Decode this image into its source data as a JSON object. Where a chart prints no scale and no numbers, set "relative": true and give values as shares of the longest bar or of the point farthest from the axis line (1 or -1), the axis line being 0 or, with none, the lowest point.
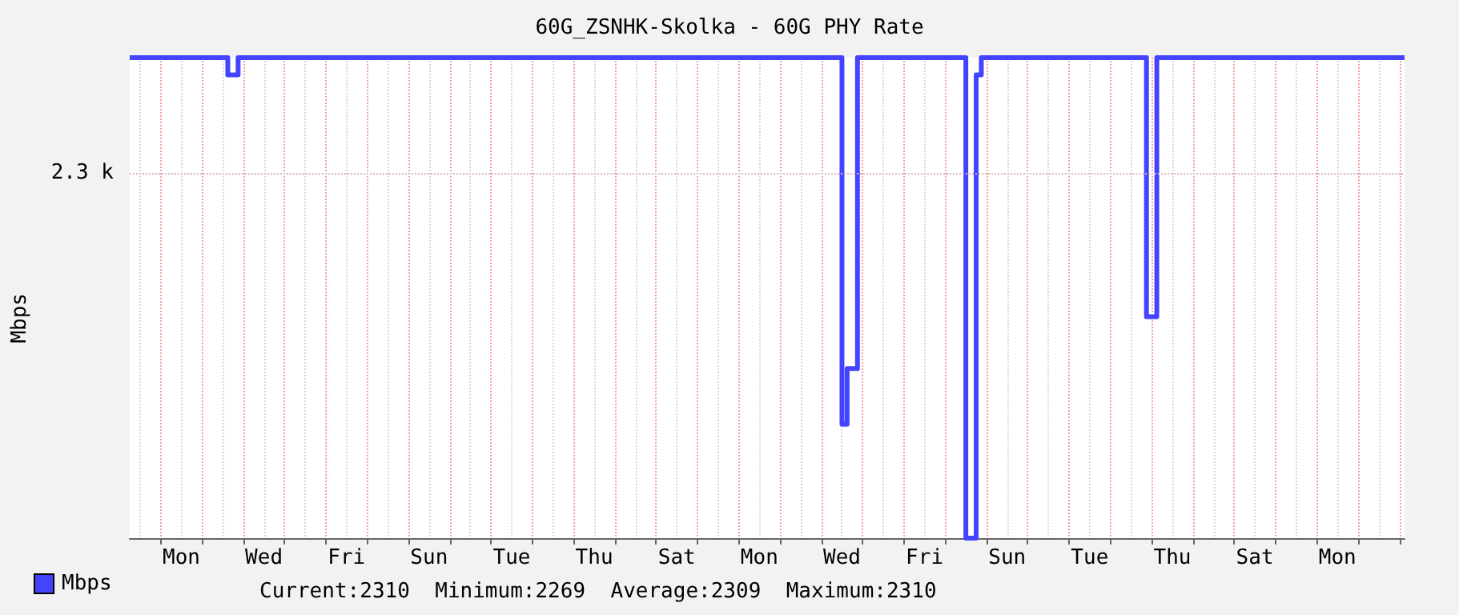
{
  "chart_data": {
    "type": "step",
    "title": "60G_ZSNHK-Skolka - 60G PHY Rate",
    "ylabel": "Mbps",
    "relative": true,
    "categories": [
      null,
      null,
      null,
      null,
      null,
      null,
      null,
      null,
      null,
      null,
      "Mon",
      null,
      null,
      null,
      null,
      null,
      null,
      null,
      null,
      null,
      null,
      null,
      null,
      null,
      null,
      null,
      "Wed",
      null,
      null,
      null,
      null,
      null,
      null,
      null,
      null,
      null,
      null,
      null,
      null,
      null,
      null,
      null,
      "Fri",
      null,
      null,
      null,
      null,
      null,
      null,
      null,
      null,
      null,
      null,
      null,
      null,
      null,
      null,
      null,
      "Sun",
      null,
      null,
      null,
      null,
      null,
      null,
      null,
      null,
      null,
      null,
      null,
      null,
      null,
      null,
      null,
      "Tue",
      null,
      null,
      null,
      null,
      null,
      null,
      null,
      null,
      null,
      null,
      null,
      null,
      null,
      null,
      null,
      "Thu",
      null,
      null,
      null,
      null,
      null,
      null,
      null,
      null,
      null,
      null,
      null,
      null,
      null,
      null,
      null,
      "Sat",
      null,
      null,
      null,
      null,
      null,
      null,
      null,
      null,
      null,
      null,
      null,
      null,
      null,
      null,
      null,
      "Mon",
      null,
      null,
      null,
      null,
      null,
      null,
      null,
      null,
      null,
      null,
      null,
      null,
      null,
      null,
      null,
      "Wed",
      null,
      null,
      null,
      null,
      null,
      null,
      null,
      null,
      null,
      null,
      null,
      null,
      null,
      null,
      null,
      "Fri",
      null,
      null,
      null,
      null,
      null,
      null,
      null,
      null,
      null,
      null,
      null,
      null,
      null,
      null,
      null,
      "Sun",
      null,
      null,
      null,
      null,
      null,
      null,
      null,
      null,
      null,
      null,
      null,
      null,
      null,
      null,
      null,
      "Tue",
      null,
      null,
      null,
      null,
      null,
      null,
      null,
      null,
      null,
      null,
      null,
      null,
      null,
      null,
      null,
      "Thu",
      null,
      null,
      null,
      null,
      null,
      null,
      null,
      null,
      null,
      null,
      null,
      null,
      null,
      null,
      null,
      "Sat",
      null,
      null,
      null,
      null,
      null,
      null,
      null,
      null,
      null,
      null,
      null,
      null,
      null,
      null,
      null,
      "Mon",
      null,
      null,
      null,
      null,
      null,
      null,
      null,
      null,
      null,
      null,
      null,
      null,
      null
    ],
    "series": [
      {
        "name": "Mbps",
        "color": "#4444ff",
        "values": [
          1,
          1,
          1,
          1,
          1,
          1,
          1,
          1,
          1,
          1,
          1,
          1,
          1,
          1,
          1,
          1,
          1,
          1,
          1,
          0.964,
          0.964,
          1,
          1,
          1,
          1,
          1,
          1,
          1,
          1,
          1,
          1,
          1,
          1,
          1,
          1,
          1,
          1,
          1,
          1,
          1,
          1,
          1,
          1,
          1,
          1,
          1,
          1,
          1,
          1,
          1,
          1,
          1,
          1,
          1,
          1,
          1,
          1,
          1,
          1,
          1,
          1,
          1,
          1,
          1,
          1,
          1,
          1,
          1,
          1,
          1,
          1,
          1,
          1,
          1,
          1,
          1,
          1,
          1,
          1,
          1,
          1,
          1,
          1,
          1,
          1,
          1,
          1,
          1,
          1,
          1,
          1,
          1,
          1,
          1,
          1,
          1,
          1,
          1,
          1,
          1,
          1,
          1,
          1,
          1,
          1,
          1,
          1,
          1,
          1,
          1,
          1,
          1,
          1,
          1,
          1,
          1,
          1,
          1,
          1,
          1,
          1,
          1,
          1,
          1,
          1,
          1,
          1,
          1,
          1,
          1,
          1,
          1,
          1,
          1,
          1,
          1,
          1,
          1,
          0.237,
          0.353,
          0.353,
          1,
          1,
          1,
          1,
          1,
          1,
          1,
          1,
          1,
          1,
          1,
          1,
          1,
          1,
          1,
          1,
          1,
          1,
          1,
          1,
          1,
          0,
          0,
          0.964,
          1,
          1,
          1,
          1,
          1,
          1,
          1,
          1,
          1,
          1,
          1,
          1,
          1,
          1,
          1,
          1,
          1,
          1,
          1,
          1,
          1,
          1,
          1,
          1,
          1,
          1,
          1,
          1,
          1,
          1,
          1,
          1,
          0.461,
          0.461,
          1,
          1,
          1,
          1,
          1,
          1,
          1,
          1,
          1,
          1,
          1,
          1,
          1,
          1,
          1,
          1,
          1,
          1,
          1,
          1,
          1,
          1,
          1,
          1,
          1,
          1,
          1,
          1,
          1,
          1,
          1,
          1,
          1,
          1,
          1,
          1,
          1,
          1,
          1,
          1,
          1,
          1,
          1,
          1,
          1,
          1,
          1,
          1,
          1
        ]
      }
    ],
    "ref_lines": [
      {
        "axis": "y",
        "value": 0.756,
        "label": "2.3 k",
        "color": "#d8b8b8",
        "line_style": "dotted"
      }
    ],
    "grid": "x",
    "legend": "bottom left",
    "marker": "none",
    "line_style": "solid",
    "annotations": [
      "Current:2310",
      "Minimum:2269",
      "Average:2309",
      "Maximum:2310"
    ]
  }
}
